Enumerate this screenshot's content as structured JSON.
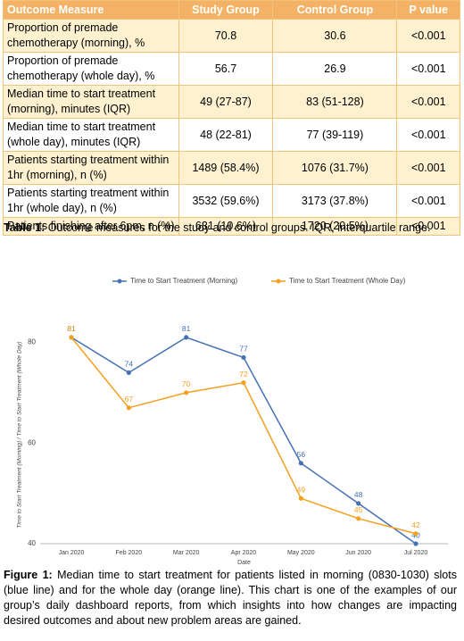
{
  "table": {
    "header": [
      "Outcome Measure",
      "Study Group",
      "Control Group",
      "P value"
    ],
    "rows": [
      [
        "Proportion of premade chemotherapy (morning), %",
        "70.8",
        "30.6",
        "<0.001"
      ],
      [
        "Proportion of premade chemotherapy (whole day), %",
        "56.7",
        "26.9",
        "<0.001"
      ],
      [
        "Median time to start treatment (morning), minutes (IQR)",
        "49 (27-87)",
        "83 (51-128)",
        "<0.001"
      ],
      [
        "Median time to start treatment (whole day), minutes (IQR)",
        "48 (22-81)",
        "77 (39-119)",
        "<0.001"
      ],
      [
        "Patients starting treatment within 1hr (morning), n (%)",
        "1489 (58.4%)",
        "1076 (31.7%)",
        "<0.001"
      ],
      [
        "Patients starting treatment within 1hr (whole day), n (%)",
        "3532 (59.6%)",
        "3173 (37.8%)",
        "<0.001"
      ],
      [
        "Patients finishing after 6pm, n (%)",
        "631 (10.6%)",
        "1720 (20.5%)",
        "<0.001"
      ]
    ]
  },
  "table_caption": {
    "label": "Table 1:",
    "text": "Outcome measures for the study and control groups. IQR, interquartile range."
  },
  "chart_data": {
    "type": "line",
    "categories": [
      "Jan 2020",
      "Feb 2020",
      "Mar 2020",
      "Apr 2020",
      "May 2020",
      "Jun 2020",
      "Jul 2020"
    ],
    "series": [
      {
        "name": "Time to Start Treatment (Morning)",
        "color": "#4472b4",
        "values": [
          81,
          74,
          81,
          77,
          56,
          48,
          40
        ]
      },
      {
        "name": "Time to Start Treatment (Whole Day)",
        "color": "#f5a020",
        "values": [
          81,
          67,
          70,
          72,
          49,
          45,
          42
        ]
      }
    ],
    "xlabel": "Date",
    "ylabel": "Time to Start Treatment (Morning) / Time to Start Treatment (Whole Day)",
    "ylim": [
      40,
      84
    ],
    "yticks": [
      40,
      60,
      80
    ],
    "grid": false,
    "legend": "top"
  },
  "figure_caption": {
    "label": "Figure 1:",
    "text": "Median time to start treatment for patients listed in morning (0830-1030) slots (blue line) and for the whole day (orange line). This chart is one of the examples of our group’s daily dashboard reports, from which insights into how changes are impacting desired outcomes and about new problem areas are gained."
  }
}
